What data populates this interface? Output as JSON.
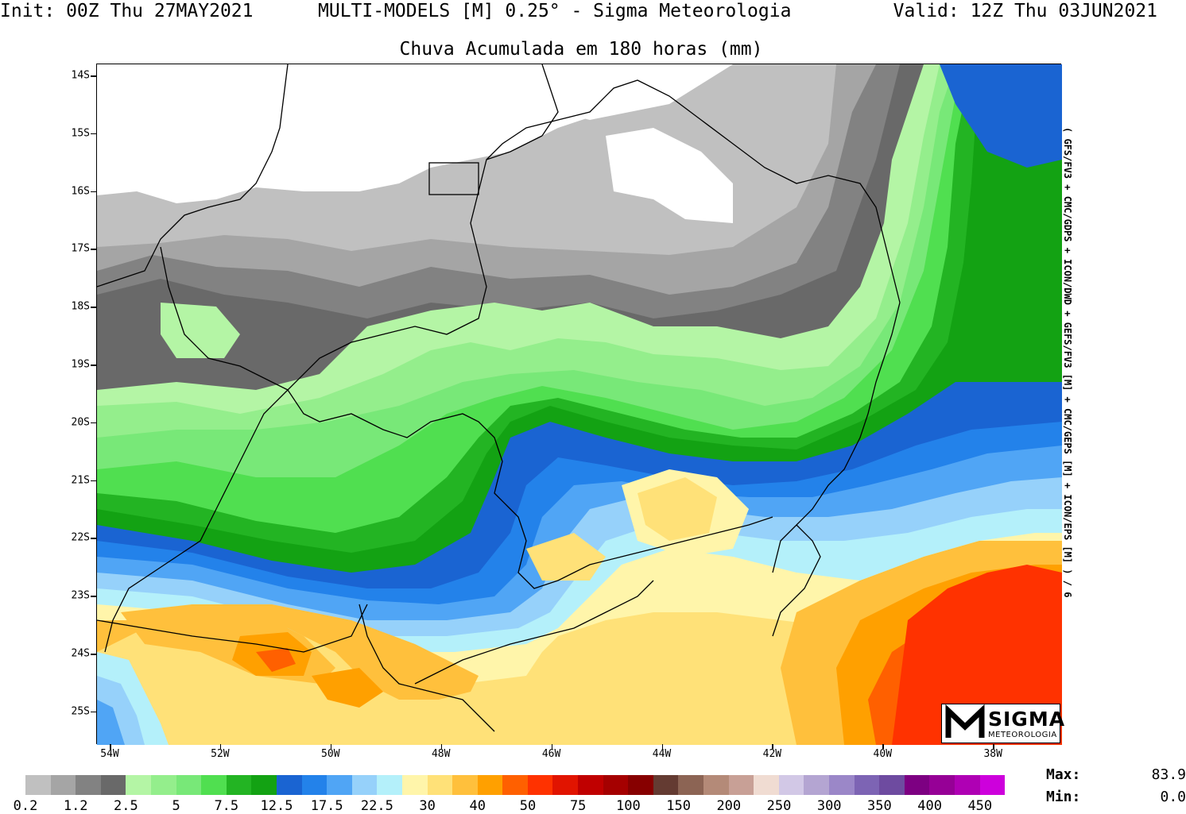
{
  "header": {
    "init": "Init: 00Z Thu 27MAY2021",
    "model": "MULTI-MODELS [M] 0.25° - Sigma Meteorologia",
    "valid": "Valid: 12Z Thu 03JUN2021",
    "subtitle": "Chuva Acumulada em 180 horas (mm)"
  },
  "side_label": "( GFS/FV3 + CMC/GDPS + ICON/DWD + GEFS/FV3 [M] + CMC/GEPS [M] + ICON/EPS [M] ) / 6",
  "lat_labels": [
    "14S",
    "15S",
    "16S",
    "17S",
    "18S",
    "19S",
    "20S",
    "21S",
    "22S",
    "23S",
    "24S",
    "25S"
  ],
  "lon_labels": [
    "54W",
    "52W",
    "50W",
    "48W",
    "46W",
    "44W",
    "42W",
    "40W",
    "38W"
  ],
  "colorbar": {
    "colors": [
      "#c0c0c0",
      "#a5a5a5",
      "#828282",
      "#696969",
      "#b4f5a5",
      "#94ee8c",
      "#78e878",
      "#50df50",
      "#23b423",
      "#13a213",
      "#1a64d2",
      "#2382ea",
      "#50a5f5",
      "#96d1fa",
      "#b4f0fa",
      "#fff5aa",
      "#ffe178",
      "#ffc03c",
      "#ffa000",
      "#ff6000",
      "#ff3200",
      "#e11400",
      "#c00000",
      "#a50000",
      "#870000",
      "#643b32",
      "#8c6454",
      "#b48a78",
      "#c8a096",
      "#f0dcd2",
      "#d2c8e6",
      "#b4a5d2",
      "#9b87c8",
      "#7d64b4",
      "#6e4ba0",
      "#7d0082",
      "#960096",
      "#af00b4",
      "#cd00dc"
    ],
    "labels": [
      "0.2",
      "1.2",
      "2.5",
      "5",
      "7.5",
      "12.5",
      "17.5",
      "22.5",
      "30",
      "40",
      "50",
      "75",
      "100",
      "150",
      "200",
      "250",
      "300",
      "350",
      "400",
      "450"
    ]
  },
  "stats": {
    "max_label": "Max:",
    "max_value": "83.9",
    "min_label": "Min:",
    "min_value": "0.0"
  },
  "logo": {
    "brand": "SIGMA",
    "sub": "METEOROLOGIA"
  }
}
